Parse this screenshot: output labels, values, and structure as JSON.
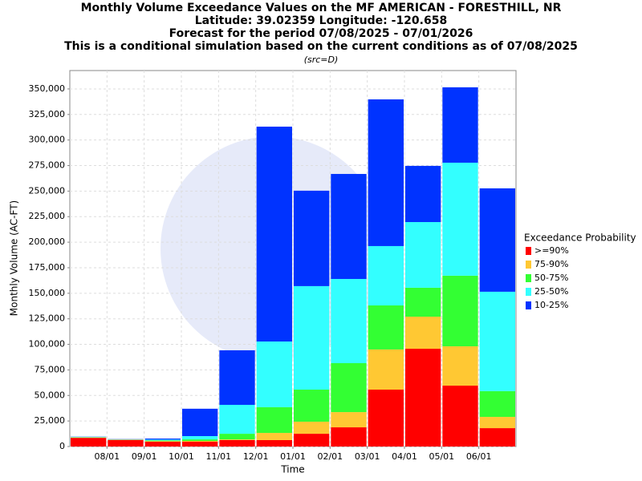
{
  "chart_data": {
    "type": "stacked-bar",
    "title": "Monthly Volume Exceedance Values on the MF AMERICAN - FORESTHILL, NR",
    "subtitle_lines": [
      "Latitude: 39.02359 Longitude: -120.658",
      "Forecast for the period 07/08/2025 - 07/01/2026",
      "This is a conditional simulation based on the current conditions as of 07/08/2025"
    ],
    "source_note": "(src=D)",
    "x_label": "Time",
    "y_label": "Monthly Volume (AC-FT)",
    "categories": [
      null,
      null,
      null,
      null,
      null,
      null,
      null,
      null,
      null,
      null,
      null,
      null
    ],
    "xlim": [
      0,
      12
    ],
    "xticks": [
      {
        "value": 1,
        "label": "08/01"
      },
      {
        "value": 2,
        "label": "09/01"
      },
      {
        "value": 3,
        "label": "10/01"
      },
      {
        "value": 4,
        "label": "11/01"
      },
      {
        "value": 5,
        "label": "12/01"
      },
      {
        "value": 6,
        "label": "01/01"
      },
      {
        "value": 7,
        "label": "02/01"
      },
      {
        "value": 8,
        "label": "03/01"
      },
      {
        "value": 9,
        "label": "04/01"
      },
      {
        "value": 10,
        "label": "05/01"
      },
      {
        "value": 11,
        "label": "06/01"
      }
    ],
    "ylim": [
      0,
      368000
    ],
    "yticks": [
      0,
      {
        "value": 25000,
        "label": "25,000"
      },
      {
        "value": 50000,
        "label": "50,000"
      },
      {
        "value": 75000,
        "label": "75,000"
      },
      {
        "value": 100000,
        "label": "100,000"
      },
      {
        "value": 125000,
        "label": "125,000"
      },
      {
        "value": 150000,
        "label": "150,000"
      },
      {
        "value": 175000,
        "label": "175,000"
      },
      {
        "value": 200000,
        "label": "200,000"
      },
      {
        "value": 225000,
        "label": "225,000"
      },
      {
        "value": 250000,
        "label": "250,000"
      },
      {
        "value": 275000,
        "label": "275,000"
      },
      {
        "value": 300000,
        "label": "300,000"
      },
      {
        "value": 325000,
        "label": "325,000"
      },
      {
        "value": 350000,
        "label": "350,000"
      }
    ],
    "grid": true,
    "legend_title": "Exceedance Probability",
    "legend_position": "right",
    "series": [
      {
        "name": ">=90%",
        "color": "#ff0000",
        "values": [
          8500,
          6500,
          4700,
          4700,
          6300,
          6300,
          12500,
          18800,
          55700,
          95700,
          59600,
          18000
        ]
      },
      {
        "name": "75-90%",
        "color": "#ffc833",
        "values": [
          400,
          200,
          600,
          800,
          700,
          7000,
          11800,
          14900,
          39300,
          31400,
          38500,
          11000
        ]
      },
      {
        "name": "50-75%",
        "color": "#33ff33",
        "values": [
          300,
          200,
          700,
          1500,
          5500,
          25200,
          31400,
          47900,
          43100,
          28300,
          69100,
          25200
        ]
      },
      {
        "name": "25-50%",
        "color": "#33ffff",
        "values": [
          300,
          200,
          800,
          3200,
          28300,
          64300,
          101300,
          82400,
          58100,
          64300,
          110600,
          97300
        ]
      },
      {
        "name": "10-25%",
        "color": "#0033ff",
        "values": [
          200,
          200,
          1000,
          26800,
          53400,
          210300,
          93400,
          102800,
          143600,
          55000,
          73800,
          101200
        ]
      }
    ]
  }
}
